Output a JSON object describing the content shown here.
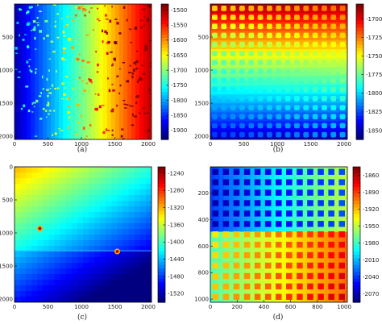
{
  "figure": {
    "colormap": "jet"
  },
  "chart_data": [
    {
      "type": "heatmap",
      "caption": "(a)",
      "xticks": [
        "0",
        "500",
        "1000",
        "1500",
        "2000"
      ],
      "yticks": [
        "500",
        "1000",
        "1500",
        "2000"
      ],
      "xlim": [
        0,
        2048
      ],
      "ylim": [
        2048,
        0
      ],
      "colorbar": {
        "ticks": [
          -1500,
          -1550,
          -1600,
          -1650,
          -1700,
          -1750,
          -1800,
          -1850,
          -1900
        ],
        "range": [
          -1930,
          -1480
        ]
      },
      "pattern": "horizontal gradient from about -1900 (left) to -1500 (right) with scattered defect speckles"
    },
    {
      "type": "heatmap",
      "caption": "(b)",
      "xticks": [
        "0",
        "500",
        "1000",
        "1500",
        "2000"
      ],
      "yticks": [
        "500",
        "1000",
        "1500",
        "2000"
      ],
      "xlim": [
        0,
        2048
      ],
      "ylim": [
        2048,
        0
      ],
      "colorbar": {
        "ticks": [
          -1700,
          -1725,
          -1750,
          -1775,
          -1800,
          -1825,
          -1850
        ],
        "range": [
          -1862,
          -1680
        ],
        "tick_label_prefix": "-1"
      },
      "pattern": "grid of square pads on a vertical gradient background"
    },
    {
      "type": "heatmap",
      "caption": "(c)",
      "xticks": [
        "0",
        "500",
        "1000",
        "1500",
        "2000"
      ],
      "yticks": [
        "0",
        "500",
        "1000",
        "1500",
        "2000"
      ],
      "xlim": [
        0,
        2048
      ],
      "ylim": [
        2048,
        0
      ],
      "colorbar": {
        "ticks": [
          -1240,
          -1280,
          -1320,
          -1360,
          -1400,
          -1440,
          -1480,
          -1520
        ],
        "range": [
          -1540,
          -1225
        ]
      },
      "pattern": "diagonal gradient with a horizontal discontinuity near y=1250 and two hot spots"
    },
    {
      "type": "heatmap",
      "caption": "(d)",
      "xticks": [
        "0",
        "200",
        "400",
        "600",
        "800",
        "1000"
      ],
      "yticks": [
        "200",
        "400",
        "600",
        "800",
        "1000"
      ],
      "xlim": [
        0,
        1024
      ],
      "ylim": [
        1024,
        0
      ],
      "colorbar": {
        "ticks": [
          -1860,
          -1890,
          -1920,
          -1950,
          -1980,
          -2010,
          -2040,
          -2070
        ],
        "range": [
          -2085,
          -1845
        ],
        "tick_label_prefix": "-"
      },
      "pattern": "square pad grid with an upper band and a warmer lower band below y=500"
    }
  ]
}
